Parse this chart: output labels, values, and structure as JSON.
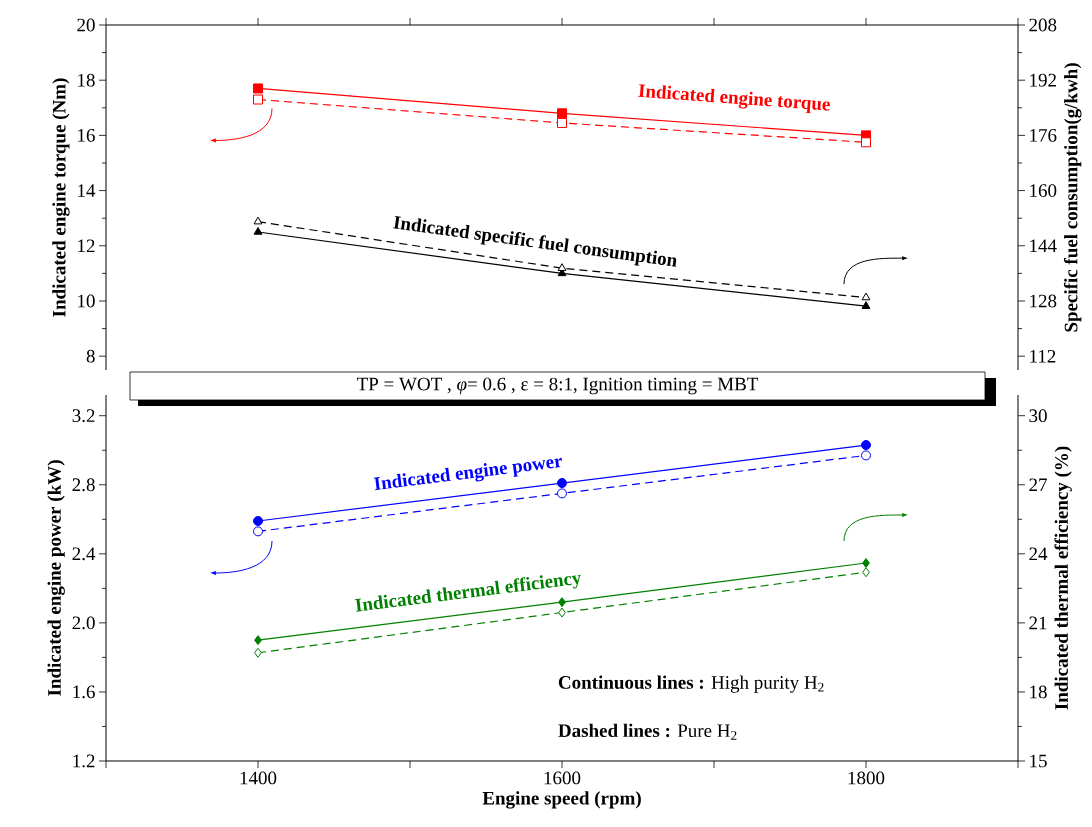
{
  "chart_data": [
    {
      "type": "line",
      "x": [
        1400,
        1600,
        1800
      ],
      "xlim": [
        1300,
        1900
      ],
      "xticks": [
        {
          "value": 1300,
          "label": null
        },
        1400,
        {
          "value": 1500,
          "label": null
        },
        1600,
        {
          "value": 1700,
          "label": null
        },
        1800,
        {
          "value": 1900,
          "label": null
        }
      ],
      "ylim": [
        7.5,
        20
      ],
      "yticks": [
        8,
        10,
        12,
        14,
        16,
        18,
        20
      ],
      "y2lim": [
        108,
        208
      ],
      "y2ticks": [
        112,
        128,
        144,
        160,
        176,
        192,
        208
      ],
      "ylabel": "Indicated engine torque (Nm)",
      "y2label": "Specific fuel consumption(g/kwh)",
      "tick_labels": "y",
      "series": [
        {
          "name": "Indicated engine torque",
          "color": "#ff0000",
          "values": [
            17.7,
            16.8,
            16.0
          ],
          "marker": "square",
          "line_style": "solid"
        },
        {
          "color": "#ff0000",
          "values": [
            17.3,
            16.45,
            15.75
          ],
          "marker": "square",
          "line_style": "dashed"
        },
        {
          "name": "Indicated specific fuel consumption",
          "color": "#000000",
          "axis": "y2",
          "values": [
            148,
            136,
            126.5
          ],
          "marker": "triangle",
          "line_style": "solid"
        },
        {
          "color": "#000000",
          "axis": "y2",
          "values": [
            151,
            137.5,
            129
          ],
          "marker": "triangle",
          "line_style": "dashed"
        }
      ]
    },
    {
      "type": "line",
      "x": [
        1400,
        1600,
        1800
      ],
      "xlim": [
        1300,
        1900
      ],
      "xticks": [
        {
          "value": 1300,
          "label": null
        },
        1400,
        {
          "value": 1500,
          "label": null
        },
        1600,
        {
          "value": 1700,
          "label": null
        },
        1800,
        {
          "value": 1900,
          "label": null
        }
      ],
      "ylim": [
        1.2,
        3.32
      ],
      "yticks": [
        1.2,
        1.6,
        {
          "value": 2.0,
          "label": "2.0"
        },
        2.4,
        2.8,
        3.2
      ],
      "y2lim": [
        15,
        30.9
      ],
      "y2ticks": [
        15,
        18,
        21,
        24,
        27,
        30
      ],
      "xlabel": "Engine speed (rpm)",
      "ylabel": "Indicated engine power (kW)",
      "y2label": "Indicated thermal efficiency (%)",
      "annotations": [
        "TP = WOT ,  *φ*= 0.6 ,  ε = 8:1,  Ignition timing = MBT",
        "**Continuous lines :** High purity H$_{2}$",
        "**Dashed lines          :** Pure H$_{2}$"
      ],
      "series": [
        {
          "name": "Indicated engine power",
          "color": "#0000ff",
          "values": [
            2.59,
            2.81,
            3.03
          ],
          "marker": "circle",
          "line_style": "solid"
        },
        {
          "color": "#0000ff",
          "values": [
            2.53,
            2.75,
            2.97
          ],
          "marker": "circle",
          "line_style": "dashed"
        },
        {
          "name": "Indicated thermal efficiency",
          "color": "#008000",
          "axis": "y2",
          "values": [
            20.25,
            21.9,
            23.6
          ],
          "marker": "diamond",
          "line_style": "solid"
        },
        {
          "color": "#008000",
          "axis": "y2",
          "values": [
            19.7,
            21.45,
            23.2
          ],
          "marker": "diamond",
          "line_style": "dashed"
        }
      ]
    }
  ]
}
